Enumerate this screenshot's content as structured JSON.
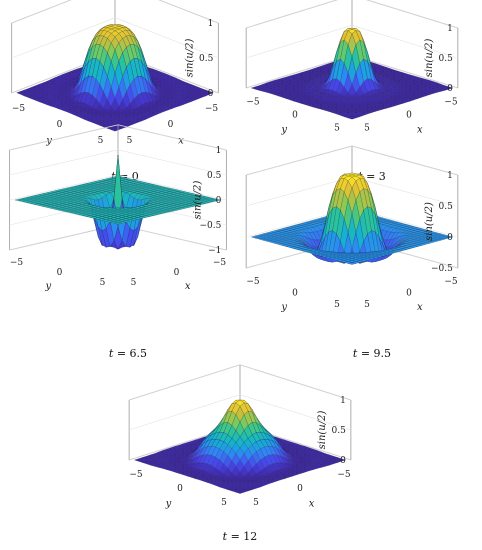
{
  "chart_data": [
    {
      "type": "surface",
      "t": 0,
      "caption": "t = 0",
      "zlabel": "sin(u/2)",
      "xlabel": "x",
      "ylabel": "y",
      "xlim": [
        -6,
        6
      ],
      "ylim": [
        -6,
        6
      ],
      "zlim": [
        0,
        1
      ],
      "zticks": [
        "0",
        "0.5",
        "1"
      ],
      "xticks": [
        "-5",
        "0",
        "5"
      ],
      "yticks": [
        "-5",
        "0",
        "5"
      ],
      "shape": "plateau",
      "peak": 1.0,
      "ring_radius": 2.6,
      "trough": 0.0
    },
    {
      "type": "surface",
      "t": 3,
      "caption": "t = 3",
      "zlabel": "sin(u/2)",
      "xlabel": "x",
      "ylabel": "y",
      "xlim": [
        -6,
        6
      ],
      "ylim": [
        -6,
        6
      ],
      "zlim": [
        0,
        1
      ],
      "zticks": [
        "0",
        "0.5",
        "1"
      ],
      "xticks": [
        "-5",
        "0",
        "5"
      ],
      "yticks": [
        "-5",
        "0",
        "5"
      ],
      "shape": "narrow",
      "peak": 1.0,
      "ring_radius": 1.6,
      "trough": 0.0
    },
    {
      "type": "surface",
      "t": 6.5,
      "caption": "t = 6.5",
      "zlabel": "sin(u/2)",
      "xlabel": "x",
      "ylabel": "y",
      "xlim": [
        -6,
        6
      ],
      "ylim": [
        -6,
        6
      ],
      "zlim": [
        -1,
        1
      ],
      "zticks": [
        "-1",
        "-0.5",
        "0",
        "0.5",
        "1"
      ],
      "xticks": [
        "-5",
        "0",
        "5"
      ],
      "yticks": [
        "-5",
        "0",
        "5"
      ],
      "shape": "spike-well",
      "peak": 1.0,
      "ring_radius": 1.4,
      "trough": -1.0
    },
    {
      "type": "surface",
      "t": 9.5,
      "caption": "t = 9.5",
      "zlabel": "sin(u/2)",
      "xlabel": "x",
      "ylabel": "y",
      "xlim": [
        -6,
        6
      ],
      "ylim": [
        -6,
        6
      ],
      "zlim": [
        -0.5,
        1
      ],
      "zticks": [
        "-0.5",
        "0",
        "0.5",
        "1"
      ],
      "xticks": [
        "-5",
        "0",
        "5"
      ],
      "yticks": [
        "-5",
        "0",
        "5"
      ],
      "shape": "dome",
      "peak": 1.0,
      "ring_radius": 2.5,
      "trough": -0.3
    },
    {
      "type": "surface",
      "t": 12,
      "caption": "t = 12",
      "zlabel": "sin(u/2)",
      "xlabel": "x",
      "ylabel": "y",
      "xlim": [
        -6,
        6
      ],
      "ylim": [
        -6,
        6
      ],
      "zlim": [
        0,
        1
      ],
      "zticks": [
        "0",
        "0.5",
        "1"
      ],
      "xticks": [
        "-5",
        "0",
        "5"
      ],
      "yticks": [
        "-5",
        "0",
        "5"
      ],
      "shape": "tiered",
      "peak": 1.0,
      "ring_radius": 3.0,
      "trough": 0.0
    }
  ],
  "colormap": [
    "#3e26a8",
    "#4746eb",
    "#2e87f7",
    "#14b2d2",
    "#2bc39a",
    "#81cc59",
    "#d9ba38",
    "#fde725"
  ]
}
